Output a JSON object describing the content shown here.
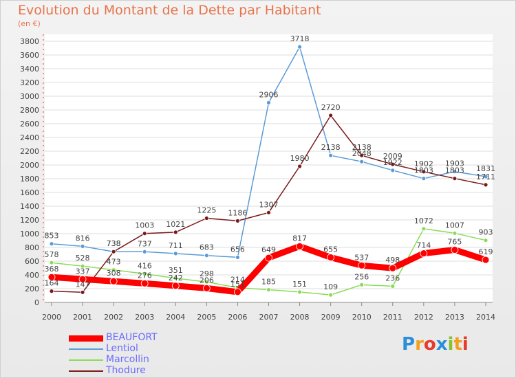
{
  "chart_data": {
    "type": "line",
    "title": "Evolution du Montant de la Dette par Habitant",
    "subtitle": "(en €)",
    "x": [
      "2000",
      "2001",
      "2002",
      "2003",
      "2004",
      "2005",
      "2006",
      "2007",
      "2008",
      "2009",
      "2010",
      "2011",
      "2012",
      "2013",
      "2014"
    ],
    "yticks": [
      0,
      200,
      400,
      600,
      800,
      1000,
      1200,
      1400,
      1600,
      1800,
      2000,
      2200,
      2400,
      2600,
      2800,
      3000,
      3200,
      3400,
      3600,
      3800
    ],
    "ylim": [
      0,
      3800
    ],
    "grid": true,
    "legend_position": "bottom-left",
    "series": [
      {
        "name": "BEAUFORT",
        "color": "#ff0000",
        "values": [
          368,
          337,
          308,
          276,
          242,
          206,
          151,
          649,
          817,
          655,
          537,
          498,
          714,
          765,
          619
        ]
      },
      {
        "name": "Lentiol",
        "color": "#5b9bd5",
        "values": [
          853,
          816,
          738,
          737,
          711,
          683,
          656,
          2906,
          3718,
          2138,
          2048,
          1922,
          1803,
          1903,
          1831
        ]
      },
      {
        "name": "Marcollin",
        "color": "#88dd55",
        "values": [
          578,
          528,
          473,
          416,
          351,
          298,
          214,
          185,
          151,
          109,
          256,
          236,
          1072,
          1007,
          903
        ]
      },
      {
        "name": "Thodure",
        "color": "#7a1a1a",
        "values": [
          164,
          147,
          738,
          1003,
          1021,
          1225,
          1186,
          1307,
          1980,
          2720,
          2138,
          2009,
          1902,
          1803,
          1711
        ]
      }
    ]
  },
  "logo": {
    "letters": [
      {
        "ch": "P",
        "color": "#2b8fd8"
      },
      {
        "ch": "r",
        "color": "#f0a020"
      },
      {
        "ch": "o",
        "color": "#e83a2a"
      },
      {
        "ch": "x",
        "color": "#2b8fd8"
      },
      {
        "ch": "i",
        "color": "#88c030"
      },
      {
        "ch": "t",
        "color": "#f0a020"
      },
      {
        "ch": "i",
        "color": "#e83a2a"
      }
    ]
  }
}
